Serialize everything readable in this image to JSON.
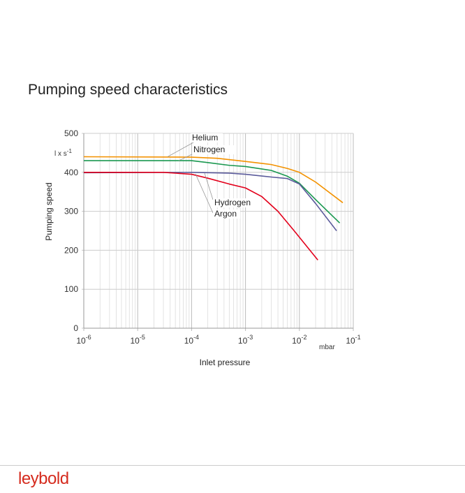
{
  "page_title": "Pumping speed characteristics",
  "logo": "leybold",
  "chart_data": {
    "type": "line",
    "title": "Pumping speed characteristics",
    "xlabel": "Inlet pressure",
    "x_unit": "mbar",
    "ylabel": "Pumping speed",
    "y_unit": "l x s-1",
    "xscale": "log",
    "xlim": [
      1e-06,
      0.1
    ],
    "ylim": [
      0,
      500
    ],
    "grid": true,
    "x_ticks": [
      {
        "base": "10",
        "exp": "-6",
        "v": 1e-06
      },
      {
        "base": "10",
        "exp": "-5",
        "v": 1e-05
      },
      {
        "base": "10",
        "exp": "-4",
        "v": 0.0001
      },
      {
        "base": "10",
        "exp": "-3",
        "v": 0.001
      },
      {
        "base": "10",
        "exp": "-2",
        "v": 0.01
      },
      {
        "base": "10",
        "exp": "-1",
        "v": 0.1
      }
    ],
    "y_ticks": [
      "0",
      "100",
      "200",
      "300",
      "400",
      "500"
    ],
    "series": [
      {
        "name": "Helium",
        "color": "#f39200",
        "x": [
          1e-06,
          0.0001,
          0.0003,
          0.001,
          0.003,
          0.006,
          0.01,
          0.02,
          0.064
        ],
        "y": [
          440,
          439,
          436,
          428,
          420,
          410,
          400,
          375,
          322
        ]
      },
      {
        "name": "Nitrogen",
        "color": "#1a9850",
        "x": [
          1e-06,
          0.0001,
          0.0002,
          0.0005,
          0.001,
          0.003,
          0.006,
          0.01,
          0.02,
          0.056
        ],
        "y": [
          430,
          430,
          425,
          418,
          415,
          405,
          390,
          372,
          330,
          270
        ]
      },
      {
        "name": "Hydrogen",
        "color": "#5b5b9b",
        "x": [
          1e-06,
          0.0001,
          0.0005,
          0.001,
          0.003,
          0.006,
          0.01,
          0.02,
          0.049
        ],
        "y": [
          399,
          400,
          398,
          395,
          388,
          384,
          370,
          320,
          250
        ]
      },
      {
        "name": "Argon",
        "color": "#e3001b",
        "x": [
          1e-06,
          3e-05,
          0.0001,
          0.0002,
          0.0005,
          0.001,
          0.002,
          0.004,
          0.008,
          0.022
        ],
        "y": [
          400,
          400,
          395,
          385,
          370,
          360,
          338,
          300,
          250,
          175
        ]
      }
    ]
  }
}
